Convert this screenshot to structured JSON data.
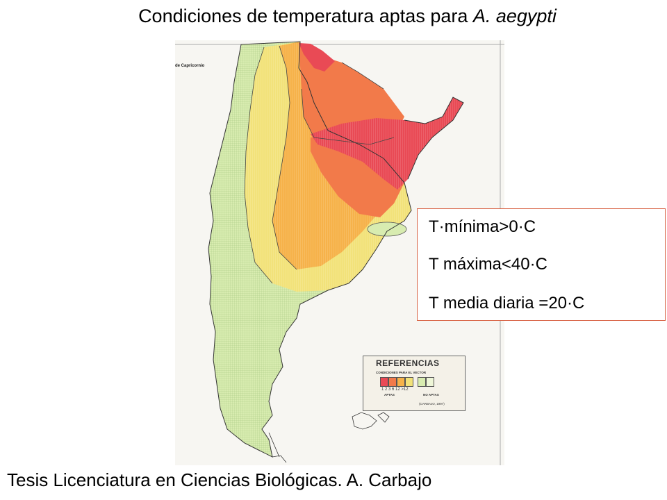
{
  "title": {
    "main": "Condiciones de temperatura aptas para ",
    "species": "A. aegypti"
  },
  "map": {
    "label": "de Capricornio",
    "zone_colors": {
      "zone_1": "#e94a55",
      "zone_2": "#f27a4a",
      "zone_3": "#f6b24a",
      "zone_6": "#f2e27a",
      "zone_12": "#d8ecb0",
      "outline": "#333333"
    }
  },
  "info_box": {
    "line_1": "T·mínima>0·C",
    "line_2": "T máxima<40·C",
    "line_3": "T media diaria =20·C",
    "border_color": "#d9674a"
  },
  "legend": {
    "title": "REFERENCIAS",
    "subtitle": "CONDICIONES PARA EL VECTOR",
    "numbers": "1   2   3   6    12 >12",
    "apt_label": "APTAS",
    "not_apt_label": "NO APTAS",
    "credit": "(CARBAJO, 1997)"
  },
  "footer": "Tesis Licenciatura en Ciencias Biológicas. A. Carbajo"
}
